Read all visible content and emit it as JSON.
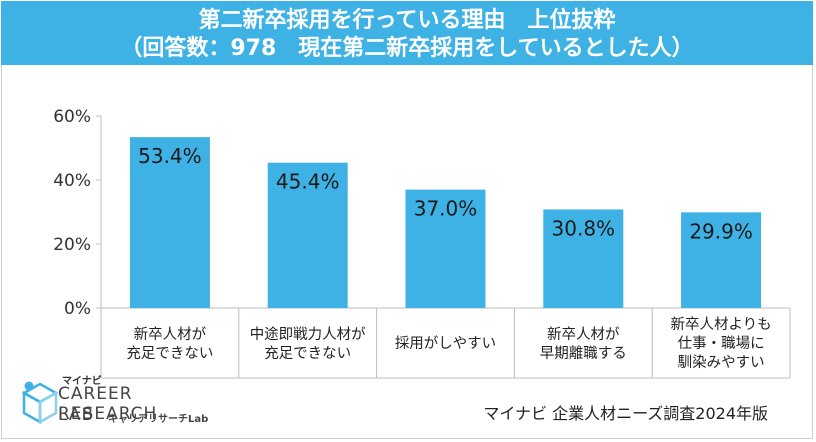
{
  "header": {
    "title_line1": "第二新卒採用を行っている理由　上位抜粋",
    "title_line2": "（回答数：978　現在第二新卒採用をしているとした人）"
  },
  "chart_data": {
    "type": "bar",
    "title": "第二新卒採用を行っている理由　上位抜粋",
    "subtitle": "（回答数：978　現在第二新卒採用をしているとした人）",
    "categories": [
      "新卒人材が\n充足できない",
      "中途即戦力人材が\n充足できない",
      "採用がしやすい",
      "新卒人材が\n早期離職する",
      "新卒人材よりも\n仕事・職場に\n馴染みやすい"
    ],
    "values": [
      53.4,
      45.4,
      37.0,
      30.8,
      29.9
    ],
    "value_labels": [
      "53.4%",
      "45.4%",
      "37.0%",
      "30.8%",
      "29.9%"
    ],
    "ylim": [
      0,
      60
    ],
    "yticks": [
      "0%",
      "20%",
      "40%",
      "60%"
    ],
    "xlabel": "",
    "ylabel": "",
    "bar_color": "#3fb2e5"
  },
  "logo": {
    "brand": "マイナビ",
    "line1": "CAREER RESEARCH",
    "line2": "LAB",
    "sub": "キャリアリサーチLab"
  },
  "source": "マイナビ 企業人材ニーズ調査2024年版"
}
